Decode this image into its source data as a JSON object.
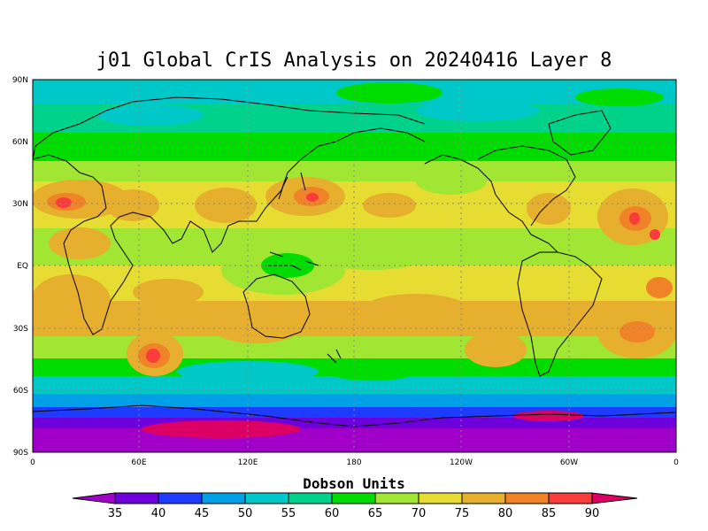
{
  "title": "j01 Global CrIS Analysis on 20240416 Layer 8",
  "lat_labels": [
    "90N",
    "60N",
    "30N",
    "EQ",
    "30S",
    "60S",
    "90S"
  ],
  "lon_labels": [
    "0",
    "60E",
    "120E",
    "180",
    "120W",
    "60W",
    "0"
  ],
  "colorbar": {
    "title": "Dobson Units",
    "labels": [
      "35",
      "40",
      "45",
      "50",
      "55",
      "60",
      "65",
      "70",
      "75",
      "80",
      "85",
      "90"
    ],
    "colors": [
      "#a000c8",
      "#6e00dc",
      "#1e3cff",
      "#00a0e6",
      "#00c8c8",
      "#00d28c",
      "#00dc00",
      "#a0e632",
      "#e6dc32",
      "#e6af2d",
      "#f08228",
      "#fa3c3c",
      "#dc0064"
    ]
  },
  "chart_data": {
    "type": "heatmap",
    "title": "j01 Global CrIS Analysis on 20240416 Layer 8",
    "units": "Dobson Units",
    "x_range": [
      0,
      360
    ],
    "y_range": [
      -90,
      90
    ],
    "latitudes": [
      90,
      80,
      70,
      60,
      50,
      40,
      30,
      20,
      10,
      0,
      -10,
      -20,
      -30,
      -40,
      -50,
      -60,
      -70,
      -80,
      -90
    ],
    "zonal_pattern_DU": [
      52,
      55,
      60,
      63,
      66,
      72,
      77,
      75,
      70,
      68,
      70,
      74,
      75,
      65,
      55,
      50,
      45,
      38,
      36
    ],
    "grid": true
  }
}
